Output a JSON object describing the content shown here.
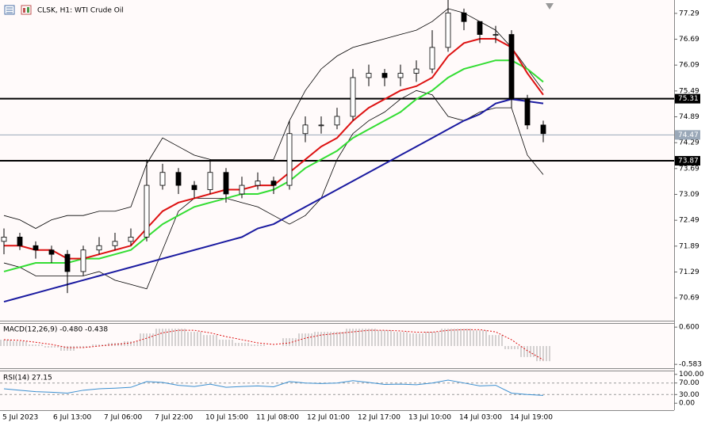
{
  "chart_data": [
    {
      "type": "candlestick",
      "title": "CLSK, H1:  WTI Crude Oil",
      "time_labels": [
        "5 Jul 2023",
        "6 Jul 13:00",
        "7 Jul 06:00",
        "7 Jul 22:00",
        "10 Jul 15:00",
        "11 Jul 08:00",
        "12 Jul 01:00",
        "12 Jul 17:00",
        "13 Jul 10:00",
        "14 Jul 03:00",
        "14 Jul 19:00"
      ],
      "open": [
        72.0,
        72.1,
        71.9,
        71.8,
        71.7,
        71.3,
        71.8,
        71.9,
        72.0,
        72.1,
        73.3,
        73.6,
        73.3,
        73.2,
        73.6,
        73.1,
        73.3,
        73.4,
        73.3,
        74.5,
        74.7,
        74.7,
        74.9,
        75.8,
        75.9,
        75.8,
        75.9,
        76.0,
        76.5,
        77.3,
        77.1,
        76.8,
        76.8,
        75.3,
        74.7
      ],
      "high": [
        72.3,
        72.2,
        72.0,
        71.9,
        71.8,
        71.9,
        72.1,
        72.2,
        72.3,
        73.9,
        73.8,
        73.7,
        73.4,
        73.9,
        73.7,
        73.5,
        73.6,
        73.5,
        74.8,
        74.9,
        74.9,
        75.1,
        76.0,
        76.1,
        76.0,
        76.1,
        76.2,
        76.9,
        77.6,
        77.4,
        77.1,
        77.0,
        76.9,
        75.4,
        74.8
      ],
      "low": [
        71.7,
        71.8,
        71.6,
        71.5,
        70.8,
        71.2,
        71.7,
        71.8,
        71.9,
        72.0,
        73.2,
        73.1,
        73.0,
        73.1,
        72.9,
        73.0,
        73.2,
        73.1,
        73.2,
        74.3,
        74.5,
        74.6,
        74.8,
        75.6,
        75.6,
        75.6,
        75.7,
        75.9,
        76.4,
        76.9,
        76.6,
        76.6,
        75.1,
        74.6,
        74.3
      ],
      "close": [
        72.1,
        71.9,
        71.8,
        71.7,
        71.3,
        71.8,
        71.9,
        72.0,
        72.1,
        73.3,
        73.6,
        73.3,
        73.2,
        73.6,
        73.1,
        73.3,
        73.4,
        73.3,
        74.5,
        74.7,
        74.7,
        74.9,
        75.8,
        75.9,
        75.8,
        75.9,
        76.0,
        76.5,
        77.3,
        77.1,
        76.8,
        76.8,
        75.3,
        74.7,
        74.5
      ],
      "lines": [
        {
          "color": "#000000",
          "width": 0.8,
          "values": [
            72.6,
            72.5,
            72.3,
            72.5,
            72.6,
            72.6,
            72.7,
            72.7,
            72.8,
            73.8,
            74.4,
            74.2,
            74.0,
            73.9,
            73.9,
            73.9,
            73.9,
            73.9,
            74.8,
            75.5,
            76.0,
            76.3,
            76.5,
            76.6,
            76.7,
            76.8,
            76.9,
            77.1,
            77.4,
            77.3,
            77.1,
            76.9,
            76.5,
            76.0,
            75.5
          ]
        },
        {
          "color": "#000000",
          "width": 0.8,
          "values": [
            71.5,
            71.4,
            71.2,
            71.2,
            71.2,
            71.2,
            71.3,
            71.1,
            71.0,
            70.9,
            71.8,
            72.7,
            73.0,
            73.0,
            73.0,
            72.9,
            72.8,
            72.6,
            72.4,
            72.6,
            73.0,
            73.9,
            74.5,
            74.8,
            75.0,
            75.3,
            75.5,
            75.4,
            74.9,
            74.8,
            75.0,
            75.1,
            75.1,
            74.0,
            73.55
          ]
        },
        {
          "color": "#1a1aa0",
          "width": 2,
          "values": [
            70.6,
            70.7,
            70.8,
            70.9,
            71.0,
            71.1,
            71.2,
            71.3,
            71.4,
            71.5,
            71.6,
            71.7,
            71.8,
            71.9,
            72.0,
            72.1,
            72.3,
            72.4,
            72.6,
            72.8,
            73.0,
            73.2,
            73.4,
            73.6,
            73.8,
            74.0,
            74.2,
            74.4,
            74.6,
            74.8,
            74.95,
            75.2,
            75.3,
            75.25,
            75.2
          ]
        },
        {
          "color": "#33dd33",
          "width": 2,
          "values": [
            71.3,
            71.4,
            71.5,
            71.5,
            71.5,
            71.6,
            71.6,
            71.7,
            71.8,
            72.1,
            72.4,
            72.6,
            72.8,
            72.9,
            73.0,
            73.1,
            73.1,
            73.2,
            73.4,
            73.7,
            73.9,
            74.1,
            74.4,
            74.6,
            74.8,
            75.0,
            75.3,
            75.5,
            75.8,
            76.0,
            76.1,
            76.2,
            76.2,
            76.0,
            75.7
          ]
        },
        {
          "color": "#dd1111",
          "width": 2,
          "values": [
            71.9,
            71.9,
            71.8,
            71.8,
            71.6,
            71.6,
            71.7,
            71.8,
            71.9,
            72.3,
            72.7,
            72.9,
            73.0,
            73.1,
            73.2,
            73.2,
            73.3,
            73.3,
            73.6,
            73.9,
            74.2,
            74.4,
            74.8,
            75.1,
            75.3,
            75.5,
            75.6,
            75.8,
            76.3,
            76.6,
            76.7,
            76.7,
            76.5,
            75.9,
            75.4
          ]
        }
      ],
      "levels": [
        {
          "value": 75.31,
          "color": "#000000"
        },
        {
          "value": 74.47,
          "color": "#9aa8b8"
        },
        {
          "value": 73.87,
          "color": "#000000"
        }
      ],
      "ylim": [
        70.16,
        77.6
      ],
      "yticks": [
        77.29,
        76.69,
        76.09,
        75.49,
        74.89,
        74.29,
        73.69,
        73.09,
        72.49,
        71.89,
        71.29,
        70.69
      ]
    },
    {
      "type": "macd",
      "title": "MACD(12,26,9) -0.480 -0.438",
      "histogram": [
        0.2,
        0.15,
        0.05,
        -0.05,
        -0.15,
        -0.05,
        0.05,
        0.1,
        0.15,
        0.4,
        0.55,
        0.55,
        0.45,
        0.35,
        0.2,
        0.1,
        0.05,
        0.0,
        0.25,
        0.4,
        0.45,
        0.45,
        0.55,
        0.55,
        0.5,
        0.45,
        0.4,
        0.45,
        0.55,
        0.55,
        0.5,
        0.35,
        -0.1,
        -0.35,
        -0.48
      ],
      "signal": [
        0.2,
        0.18,
        0.12,
        0.05,
        -0.05,
        -0.05,
        0.0,
        0.05,
        0.1,
        0.25,
        0.42,
        0.5,
        0.5,
        0.42,
        0.3,
        0.2,
        0.1,
        0.05,
        0.1,
        0.25,
        0.35,
        0.4,
        0.45,
        0.5,
        0.5,
        0.48,
        0.44,
        0.44,
        0.5,
        0.52,
        0.52,
        0.45,
        0.2,
        -0.15,
        -0.44
      ],
      "histogram_color": "#a8a8a8",
      "signal_color": "#dd1111",
      "ylim": [
        -0.73,
        0.73
      ],
      "yticks": [
        {
          "value": 0.6,
          "label": "0.600"
        },
        {
          "value": -0.583,
          "label": "-0.583"
        }
      ]
    },
    {
      "type": "rsi",
      "title": "RSI(14) 27.15",
      "values": [
        50,
        45,
        40,
        38,
        35,
        45,
        50,
        52,
        55,
        75,
        72,
        62,
        58,
        66,
        55,
        58,
        60,
        57,
        75,
        70,
        68,
        70,
        78,
        72,
        65,
        66,
        64,
        70,
        80,
        70,
        60,
        62,
        35,
        30,
        27.15
      ],
      "color": "#3a8fd0",
      "levels": [
        70,
        30
      ],
      "ylim": [
        -24,
        113
      ],
      "yticks": [
        {
          "value": 100,
          "label": "100.00"
        },
        {
          "value": 70,
          "label": "70.00"
        },
        {
          "value": 30,
          "label": "30.00"
        },
        {
          "value": 0,
          "label": "0.00"
        }
      ]
    }
  ]
}
